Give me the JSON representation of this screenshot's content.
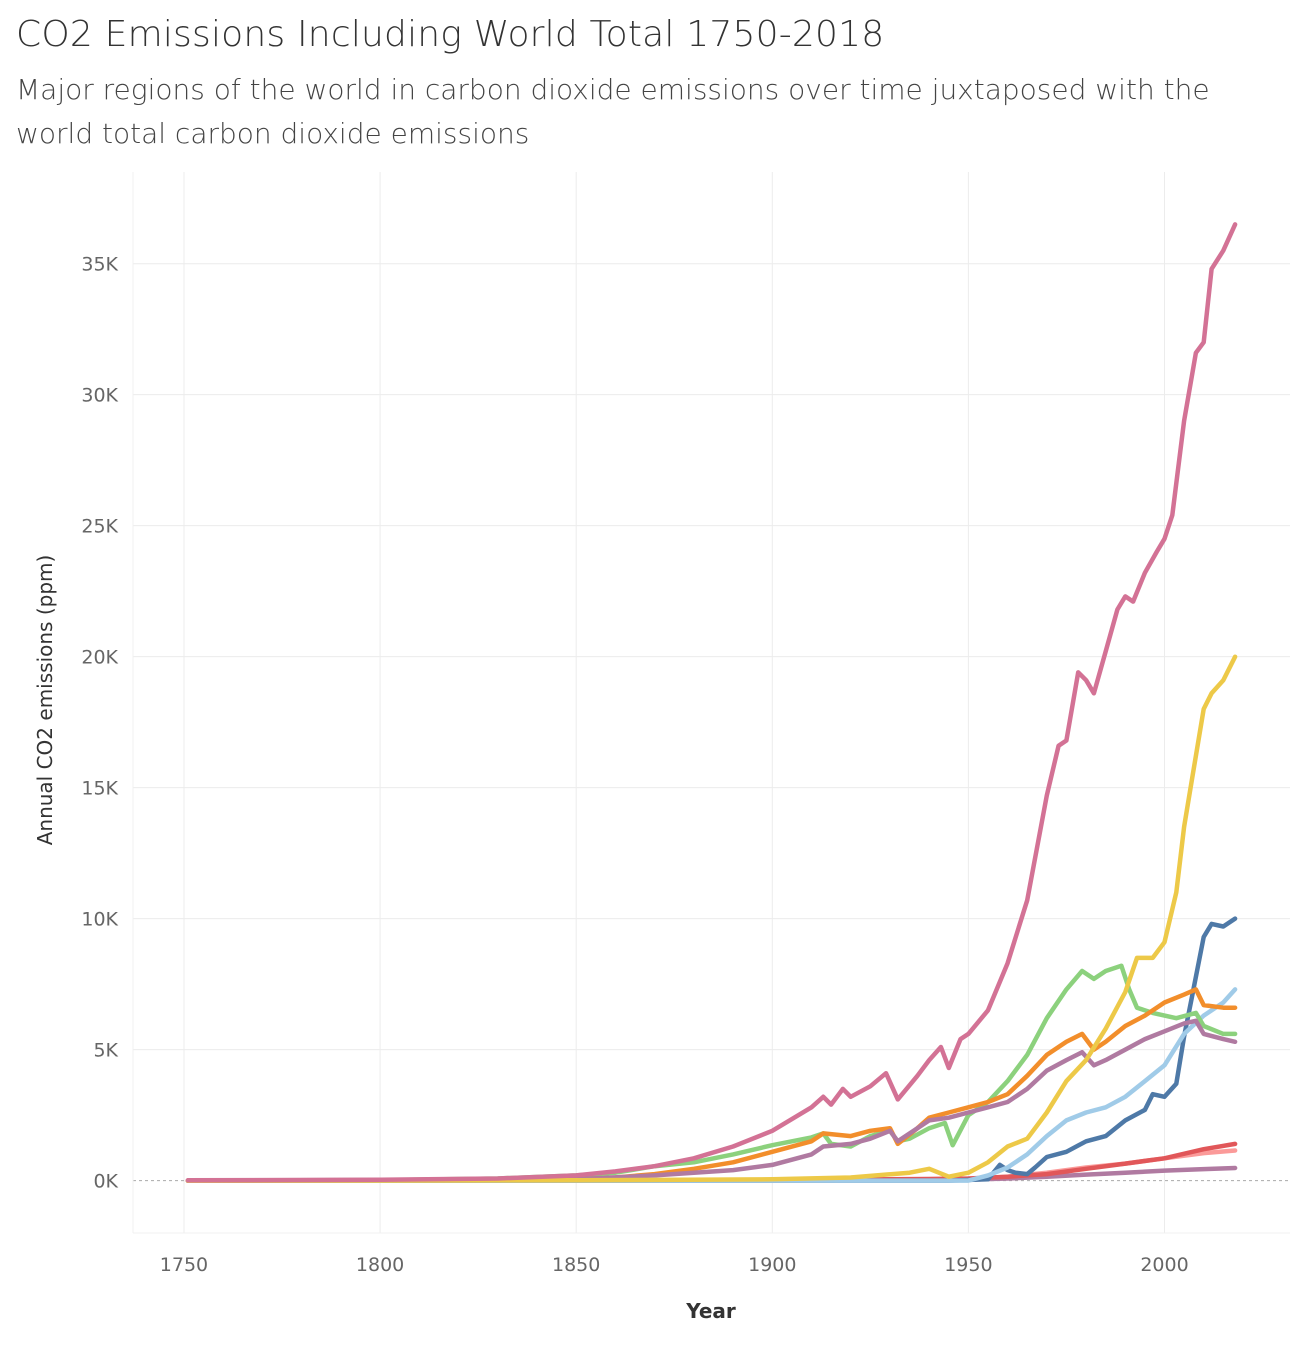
{
  "title": "CO2 Emissions Including World Total 1750-2018",
  "subtitle": "Major regions of the world in carbon dioxide emissions over time juxtaposed with the world total carbon dioxide emissions",
  "chart_data": {
    "type": "line",
    "title": "CO2 Emissions Including World Total 1750-2018",
    "subtitle": "Major regions of the world in carbon dioxide emissions over time juxtaposed with the world total carbon dioxide emissions",
    "xlabel": "Year",
    "ylabel": "Annual CO2 emissions (ppm)",
    "xlim": [
      1737,
      2032
    ],
    "ylim": [
      -2000,
      38500
    ],
    "x_ticks": [
      1750,
      1800,
      1850,
      1900,
      1950,
      2000
    ],
    "x_tick_labels": [
      "1750",
      "1800",
      "1850",
      "1900",
      "1950",
      "2000"
    ],
    "y_ticks": [
      0,
      5000,
      10000,
      15000,
      20000,
      25000,
      30000,
      35000
    ],
    "y_tick_labels": [
      "0K",
      "5K",
      "10K",
      "15K",
      "20K",
      "25K",
      "30K",
      "35K"
    ],
    "grid": true,
    "zero_line": "dashed",
    "legend": "none",
    "series": [
      {
        "color": "#fb9a99",
        "values": [
          [
            1751,
            0
          ],
          [
            1850,
            0
          ],
          [
            1900,
            20
          ],
          [
            1950,
            60
          ],
          [
            1960,
            150
          ],
          [
            1970,
            300
          ],
          [
            1980,
            500
          ],
          [
            1990,
            650
          ],
          [
            2000,
            850
          ],
          [
            2010,
            1050
          ],
          [
            2018,
            1150
          ]
        ]
      },
      {
        "color": "#b07aa1",
        "values": [
          [
            1751,
            0
          ],
          [
            1900,
            0
          ],
          [
            1950,
            40
          ],
          [
            1960,
            80
          ],
          [
            1970,
            150
          ],
          [
            1980,
            230
          ],
          [
            1990,
            300
          ],
          [
            2000,
            380
          ],
          [
            2010,
            440
          ],
          [
            2018,
            480
          ]
        ]
      },
      {
        "color": "#e15759",
        "values": [
          [
            1751,
            0
          ],
          [
            1850,
            0
          ],
          [
            1900,
            20
          ],
          [
            1940,
            60
          ],
          [
            1950,
            80
          ],
          [
            1960,
            150
          ],
          [
            1970,
            250
          ],
          [
            1980,
            450
          ],
          [
            1990,
            650
          ],
          [
            2000,
            850
          ],
          [
            2010,
            1200
          ],
          [
            2018,
            1400
          ]
        ]
      },
      {
        "color": "#4e79a7",
        "values": [
          [
            1751,
            0
          ],
          [
            1945,
            0
          ],
          [
            1955,
            50
          ],
          [
            1958,
            600
          ],
          [
            1960,
            400
          ],
          [
            1962,
            300
          ],
          [
            1965,
            250
          ],
          [
            1967,
            500
          ],
          [
            1970,
            900
          ],
          [
            1975,
            1100
          ],
          [
            1980,
            1500
          ],
          [
            1985,
            1700
          ],
          [
            1990,
            2300
          ],
          [
            1995,
            2700
          ],
          [
            1997,
            3300
          ],
          [
            2000,
            3200
          ],
          [
            2003,
            3700
          ],
          [
            2005,
            5500
          ],
          [
            2007,
            7000
          ],
          [
            2010,
            9300
          ],
          [
            2012,
            9800
          ],
          [
            2015,
            9700
          ],
          [
            2018,
            10000
          ]
        ]
      },
      {
        "color": "#a0cbe8",
        "values": [
          [
            1751,
            0
          ],
          [
            1950,
            0
          ],
          [
            1955,
            200
          ],
          [
            1960,
            500
          ],
          [
            1965,
            1000
          ],
          [
            1970,
            1700
          ],
          [
            1975,
            2300
          ],
          [
            1980,
            2600
          ],
          [
            1985,
            2800
          ],
          [
            1990,
            3200
          ],
          [
            1995,
            3800
          ],
          [
            2000,
            4400
          ],
          [
            2005,
            5600
          ],
          [
            2010,
            6300
          ],
          [
            2015,
            6800
          ],
          [
            2018,
            7300
          ]
        ]
      },
      {
        "color": "#8cd17d",
        "values": [
          [
            1751,
            0
          ],
          [
            1800,
            20
          ],
          [
            1830,
            80
          ],
          [
            1850,
            200
          ],
          [
            1860,
            300
          ],
          [
            1870,
            550
          ],
          [
            1880,
            700
          ],
          [
            1890,
            1000
          ],
          [
            1900,
            1350
          ],
          [
            1910,
            1650
          ],
          [
            1913,
            1800
          ],
          [
            1915,
            1400
          ],
          [
            1920,
            1300
          ],
          [
            1925,
            1700
          ],
          [
            1930,
            1900
          ],
          [
            1932,
            1500
          ],
          [
            1935,
            1600
          ],
          [
            1940,
            2000
          ],
          [
            1944,
            2200
          ],
          [
            1946,
            1350
          ],
          [
            1950,
            2500
          ],
          [
            1955,
            3000
          ],
          [
            1960,
            3800
          ],
          [
            1965,
            4800
          ],
          [
            1970,
            6200
          ],
          [
            1975,
            7300
          ],
          [
            1979,
            8000
          ],
          [
            1982,
            7700
          ],
          [
            1985,
            8000
          ],
          [
            1989,
            8200
          ],
          [
            1991,
            7300
          ],
          [
            1993,
            6600
          ],
          [
            1997,
            6400
          ],
          [
            2000,
            6300
          ],
          [
            2003,
            6200
          ],
          [
            2008,
            6400
          ],
          [
            2010,
            5900
          ],
          [
            2015,
            5600
          ],
          [
            2018,
            5600
          ]
        ]
      },
      {
        "color": "#f28e2b",
        "values": [
          [
            1751,
            0
          ],
          [
            1830,
            10
          ],
          [
            1850,
            50
          ],
          [
            1860,
            120
          ],
          [
            1870,
            250
          ],
          [
            1880,
            450
          ],
          [
            1890,
            700
          ],
          [
            1900,
            1100
          ],
          [
            1910,
            1500
          ],
          [
            1913,
            1800
          ],
          [
            1920,
            1700
          ],
          [
            1925,
            1900
          ],
          [
            1930,
            2000
          ],
          [
            1932,
            1400
          ],
          [
            1937,
            2000
          ],
          [
            1940,
            2400
          ],
          [
            1945,
            2600
          ],
          [
            1950,
            2800
          ],
          [
            1955,
            3000
          ],
          [
            1960,
            3300
          ],
          [
            1965,
            4000
          ],
          [
            1970,
            4800
          ],
          [
            1975,
            5300
          ],
          [
            1979,
            5600
          ],
          [
            1982,
            5000
          ],
          [
            1985,
            5300
          ],
          [
            1990,
            5900
          ],
          [
            1995,
            6300
          ],
          [
            2000,
            6800
          ],
          [
            2005,
            7100
          ],
          [
            2008,
            7300
          ],
          [
            2010,
            6700
          ],
          [
            2015,
            6600
          ],
          [
            2018,
            6600
          ]
        ]
      },
      {
        "color": "#b07aa1",
        "values": [
          [
            1751,
            0
          ],
          [
            1850,
            50
          ],
          [
            1870,
            200
          ],
          [
            1890,
            400
          ],
          [
            1900,
            600
          ],
          [
            1910,
            1000
          ],
          [
            1913,
            1300
          ],
          [
            1920,
            1400
          ],
          [
            1925,
            1600
          ],
          [
            1930,
            1900
          ],
          [
            1932,
            1500
          ],
          [
            1937,
            2000
          ],
          [
            1940,
            2300
          ],
          [
            1945,
            2400
          ],
          [
            1950,
            2600
          ],
          [
            1955,
            2800
          ],
          [
            1960,
            3000
          ],
          [
            1965,
            3500
          ],
          [
            1970,
            4200
          ],
          [
            1975,
            4600
          ],
          [
            1979,
            4900
          ],
          [
            1982,
            4400
          ],
          [
            1985,
            4600
          ],
          [
            1990,
            5000
          ],
          [
            1995,
            5400
          ],
          [
            2000,
            5700
          ],
          [
            2005,
            6000
          ],
          [
            2008,
            6100
          ],
          [
            2010,
            5600
          ],
          [
            2015,
            5400
          ],
          [
            2018,
            5300
          ]
        ]
      },
      {
        "color": "#edc948",
        "values": [
          [
            1751,
            0
          ],
          [
            1850,
            10
          ],
          [
            1900,
            50
          ],
          [
            1920,
            120
          ],
          [
            1935,
            300
          ],
          [
            1940,
            450
          ],
          [
            1945,
            150
          ],
          [
            1950,
            300
          ],
          [
            1955,
            700
          ],
          [
            1960,
            1300
          ],
          [
            1965,
            1600
          ],
          [
            1970,
            2600
          ],
          [
            1975,
            3800
          ],
          [
            1980,
            4600
          ],
          [
            1985,
            5800
          ],
          [
            1990,
            7200
          ],
          [
            1993,
            8500
          ],
          [
            1997,
            8500
          ],
          [
            2000,
            9100
          ],
          [
            2003,
            11000
          ],
          [
            2005,
            13500
          ],
          [
            2007,
            15300
          ],
          [
            2010,
            18000
          ],
          [
            2012,
            18600
          ],
          [
            2015,
            19100
          ],
          [
            2018,
            20000
          ]
        ]
      },
      {
        "color": "#d37295",
        "values": [
          [
            1751,
            10
          ],
          [
            1800,
            30
          ],
          [
            1830,
            80
          ],
          [
            1850,
            200
          ],
          [
            1860,
            350
          ],
          [
            1870,
            550
          ],
          [
            1880,
            850
          ],
          [
            1890,
            1300
          ],
          [
            1900,
            1900
          ],
          [
            1910,
            2800
          ],
          [
            1913,
            3200
          ],
          [
            1915,
            2900
          ],
          [
            1918,
            3500
          ],
          [
            1920,
            3200
          ],
          [
            1925,
            3600
          ],
          [
            1929,
            4100
          ],
          [
            1932,
            3100
          ],
          [
            1937,
            4000
          ],
          [
            1940,
            4600
          ],
          [
            1943,
            5100
          ],
          [
            1945,
            4300
          ],
          [
            1948,
            5400
          ],
          [
            1950,
            5600
          ],
          [
            1955,
            6500
          ],
          [
            1960,
            8300
          ],
          [
            1965,
            10700
          ],
          [
            1970,
            14700
          ],
          [
            1973,
            16600
          ],
          [
            1975,
            16800
          ],
          [
            1978,
            19400
          ],
          [
            1980,
            19100
          ],
          [
            1982,
            18600
          ],
          [
            1985,
            20200
          ],
          [
            1988,
            21800
          ],
          [
            1990,
            22300
          ],
          [
            1992,
            22100
          ],
          [
            1995,
            23200
          ],
          [
            1998,
            24000
          ],
          [
            2000,
            24500
          ],
          [
            2002,
            25400
          ],
          [
            2005,
            29000
          ],
          [
            2008,
            31600
          ],
          [
            2010,
            32000
          ],
          [
            2012,
            34800
          ],
          [
            2015,
            35500
          ],
          [
            2018,
            36500
          ]
        ]
      }
    ]
  }
}
